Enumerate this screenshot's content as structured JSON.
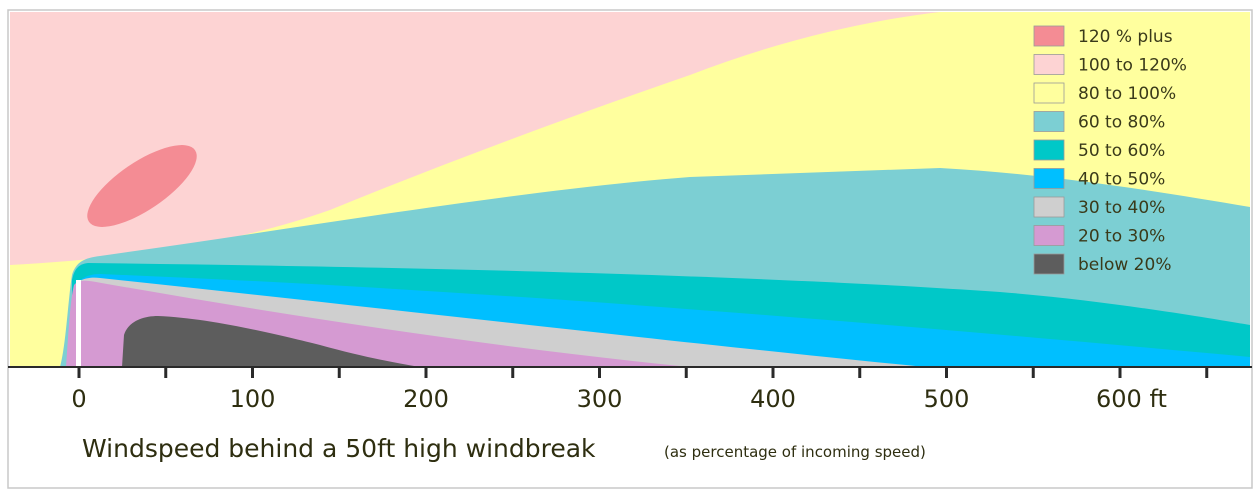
{
  "title": "Windspeed behind a 50ft high windbreak",
  "subtitle": "(as percentage of incoming speed)",
  "legend": [
    {
      "label": "120 % plus",
      "color": "#f48c94"
    },
    {
      "label": "100 to 120%",
      "color": "#fdd3d3"
    },
    {
      "label": "80 to 100%",
      "color": "#ffff9e"
    },
    {
      "label": "60 to 80%",
      "color": "#7ccfd3"
    },
    {
      "label": "50 to 60%",
      "color": "#00c8c8"
    },
    {
      "label": "40 to 50%",
      "color": "#00bfff"
    },
    {
      "label": "30 to 40%",
      "color": "#cfcfcf"
    },
    {
      "label": "20 to 30%",
      "color": "#d59ad2"
    },
    {
      "label": "below 20%",
      "color": "#5d5d5d"
    }
  ],
  "axis": {
    "ticks": [
      "0",
      "100",
      "200",
      "300",
      "400",
      "500",
      "600 ft"
    ]
  },
  "colors": {
    "zone_120_plus": "#f48c94",
    "zone_100_120": "#fdd3d3",
    "zone_80_100": "#ffff9e",
    "zone_60_80": "#7ccfd3",
    "zone_50_60": "#00c8c8",
    "zone_40_50": "#00bfff",
    "zone_30_40": "#cfcfcf",
    "zone_20_30": "#d59ad2",
    "zone_below_20": "#5d5d5d",
    "axis_line": "#2a2a2a",
    "text": "#2e2e10"
  }
}
